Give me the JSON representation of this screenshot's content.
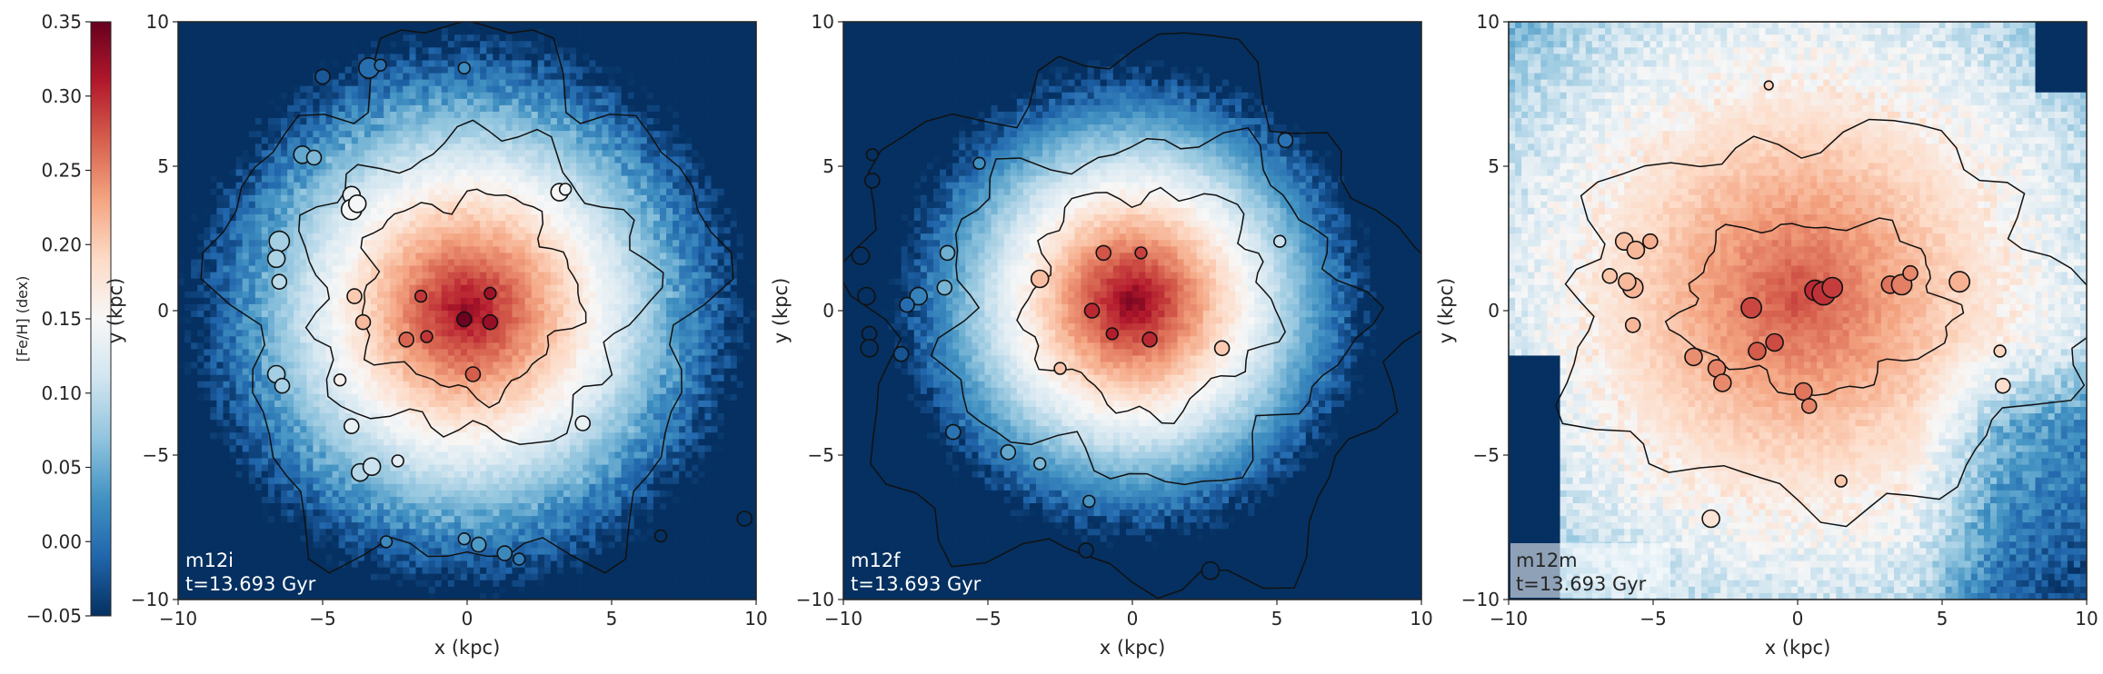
{
  "chart_data": {
    "type": "heatmap",
    "colorbar": {
      "label": "[Fe/H] (dex)",
      "range": [
        -0.05,
        0.35
      ],
      "ticks": [
        -0.05,
        0.0,
        0.05,
        0.1,
        0.15,
        0.2,
        0.25,
        0.3,
        0.35
      ],
      "tick_labels": [
        "−0.05",
        "0.00",
        "0.05",
        "0.10",
        "0.15",
        "0.20",
        "0.25",
        "0.30",
        "0.35"
      ],
      "colormap": "RdBu_r",
      "colors": [
        "#053061",
        "#2166ac",
        "#4393c3",
        "#92c5de",
        "#d1e5f0",
        "#f7f7f7",
        "#fddbc7",
        "#f4a582",
        "#d6604d",
        "#b2182b",
        "#67001f"
      ]
    },
    "panels": [
      {
        "name": "m12i",
        "time_label": "t=13.693 Gyr",
        "xlabel": "x (kpc)",
        "ylabel": "y (kpc)",
        "xlim": [
          -10,
          10
        ],
        "ylim": [
          -10,
          10
        ],
        "xticks": [
          -10,
          -5,
          0,
          5,
          10
        ],
        "yticks": [
          -10,
          -5,
          0,
          5,
          10
        ],
        "xtick_labels": [
          "−10",
          "−5",
          "0",
          "5",
          "10"
        ],
        "ytick_labels": [
          "−10",
          "−5",
          "0",
          "5",
          "10"
        ],
        "field": {
          "center": [
            0,
            0
          ],
          "central_feh": 0.33,
          "gradient_per_kpc": -0.04
        },
        "contour_levels_kpc": [
          {
            "center": [
              0,
              0.2
            ],
            "rx": 8.2,
            "ry": 9.2
          },
          {
            "center": [
              0.2,
              0.8
            ],
            "rx": 5.8,
            "ry": 5.2
          },
          {
            "center": [
              0,
              0.6
            ],
            "rx": 3.7,
            "ry": 3.4
          }
        ],
        "clusters": [
          {
            "x": -5.0,
            "y": 8.1,
            "r": 0.25
          },
          {
            "x": -3.4,
            "y": 8.4,
            "r": 0.35
          },
          {
            "x": -3.0,
            "y": 8.5,
            "r": 0.2
          },
          {
            "x": -0.1,
            "y": 8.4,
            "r": 0.2
          },
          {
            "x": -5.7,
            "y": 5.4,
            "r": 0.3
          },
          {
            "x": -5.3,
            "y": 5.3,
            "r": 0.25
          },
          {
            "x": -4.0,
            "y": 4.0,
            "r": 0.3
          },
          {
            "x": -4.0,
            "y": 3.5,
            "r": 0.35
          },
          {
            "x": -3.8,
            "y": 3.7,
            "r": 0.3
          },
          {
            "x": 3.2,
            "y": 4.1,
            "r": 0.3
          },
          {
            "x": 3.4,
            "y": 4.2,
            "r": 0.2
          },
          {
            "x": -6.5,
            "y": 2.4,
            "r": 0.35
          },
          {
            "x": -6.6,
            "y": 1.8,
            "r": 0.3
          },
          {
            "x": -6.5,
            "y": 1.0,
            "r": 0.25
          },
          {
            "x": -3.9,
            "y": 0.5,
            "r": 0.25
          },
          {
            "x": -3.6,
            "y": -0.4,
            "r": 0.25
          },
          {
            "x": -1.6,
            "y": 0.5,
            "r": 0.2
          },
          {
            "x": -0.1,
            "y": -0.3,
            "r": 0.25
          },
          {
            "x": 0.8,
            "y": 0.6,
            "r": 0.2
          },
          {
            "x": 0.8,
            "y": -0.4,
            "r": 0.25
          },
          {
            "x": -1.4,
            "y": -0.9,
            "r": 0.2
          },
          {
            "x": -2.1,
            "y": -1.0,
            "r": 0.25
          },
          {
            "x": 0.2,
            "y": -2.2,
            "r": 0.25
          },
          {
            "x": -6.6,
            "y": -2.2,
            "r": 0.3
          },
          {
            "x": -6.4,
            "y": -2.6,
            "r": 0.25
          },
          {
            "x": -4.4,
            "y": -2.4,
            "r": 0.2
          },
          {
            "x": -4.0,
            "y": -4.0,
            "r": 0.25
          },
          {
            "x": -3.7,
            "y": -5.6,
            "r": 0.3
          },
          {
            "x": -3.3,
            "y": -5.4,
            "r": 0.3
          },
          {
            "x": -2.4,
            "y": -5.2,
            "r": 0.2
          },
          {
            "x": 4.0,
            "y": -3.9,
            "r": 0.25
          },
          {
            "x": -2.8,
            "y": -8.0,
            "r": 0.2
          },
          {
            "x": -0.1,
            "y": -7.9,
            "r": 0.2
          },
          {
            "x": 0.4,
            "y": -8.1,
            "r": 0.25
          },
          {
            "x": 1.3,
            "y": -8.4,
            "r": 0.25
          },
          {
            "x": 1.8,
            "y": -8.6,
            "r": 0.2
          },
          {
            "x": 9.6,
            "y": -7.2,
            "r": 0.25
          },
          {
            "x": 6.7,
            "y": -7.8,
            "r": 0.2
          }
        ]
      },
      {
        "name": "m12f",
        "time_label": "t=13.693 Gyr",
        "xlabel": "x (kpc)",
        "ylabel": "y (kpc)",
        "xlim": [
          -10,
          10
        ],
        "ylim": [
          -10,
          10
        ],
        "xticks": [
          -10,
          -5,
          0,
          5,
          10
        ],
        "yticks": [
          -10,
          -5,
          0,
          5,
          10
        ],
        "xtick_labels": [
          "−10",
          "−5",
          "0",
          "5",
          "10"
        ],
        "ytick_labels": [
          "−10",
          "−5",
          "0",
          "5",
          "10"
        ],
        "field": {
          "center": [
            0,
            0.3
          ],
          "central_feh": 0.34,
          "gradient_per_kpc": -0.048
        },
        "contour_levels_kpc": [
          {
            "center": [
              0,
              -0.3
            ],
            "rx": 9.6,
            "ry": 9.2
          },
          {
            "center": [
              0.5,
              0.1
            ],
            "rx": 7.0,
            "ry": 5.8
          },
          {
            "center": [
              0.6,
              0.4
            ],
            "rx": 4.2,
            "ry": 3.8
          }
        ],
        "clusters": [
          {
            "x": -9.0,
            "y": 4.5,
            "r": 0.25
          },
          {
            "x": -5.3,
            "y": 5.1,
            "r": 0.2
          },
          {
            "x": -9.4,
            "y": 1.9,
            "r": 0.3
          },
          {
            "x": -9.2,
            "y": 0.5,
            "r": 0.3
          },
          {
            "x": -7.4,
            "y": 0.5,
            "r": 0.3
          },
          {
            "x": -7.8,
            "y": 0.2,
            "r": 0.25
          },
          {
            "x": -6.5,
            "y": 0.8,
            "r": 0.25
          },
          {
            "x": -6.4,
            "y": 2.0,
            "r": 0.25
          },
          {
            "x": -3.2,
            "y": 1.1,
            "r": 0.3
          },
          {
            "x": -1.0,
            "y": 2.0,
            "r": 0.25
          },
          {
            "x": 0.3,
            "y": 2.0,
            "r": 0.2
          },
          {
            "x": -1.4,
            "y": 0.0,
            "r": 0.25
          },
          {
            "x": -0.7,
            "y": -0.8,
            "r": 0.2
          },
          {
            "x": 0.6,
            "y": -1.0,
            "r": 0.25
          },
          {
            "x": -9.1,
            "y": -0.8,
            "r": 0.25
          },
          {
            "x": -9.1,
            "y": -1.3,
            "r": 0.3
          },
          {
            "x": -8.0,
            "y": -1.5,
            "r": 0.25
          },
          {
            "x": -2.5,
            "y": -2.0,
            "r": 0.2
          },
          {
            "x": 3.1,
            "y": -1.3,
            "r": 0.25
          },
          {
            "x": -6.2,
            "y": -4.2,
            "r": 0.25
          },
          {
            "x": -4.3,
            "y": -4.9,
            "r": 0.25
          },
          {
            "x": -3.2,
            "y": -5.3,
            "r": 0.2
          },
          {
            "x": -1.5,
            "y": -6.6,
            "r": 0.2
          },
          {
            "x": -1.6,
            "y": -8.3,
            "r": 0.25
          },
          {
            "x": 2.7,
            "y": -9.0,
            "r": 0.3
          },
          {
            "x": 5.1,
            "y": 2.4,
            "r": 0.2
          },
          {
            "x": 5.3,
            "y": 5.9,
            "r": 0.25
          },
          {
            "x": -9.0,
            "y": 5.4,
            "r": 0.2
          }
        ]
      },
      {
        "name": "m12m",
        "time_label": "t=13.693 Gyr",
        "xlabel": "x (kpc)",
        "ylabel": "y (kpc)",
        "xlim": [
          -10,
          10
        ],
        "ylim": [
          -10,
          10
        ],
        "xticks": [
          -10,
          -5,
          0,
          5,
          10
        ],
        "yticks": [
          -10,
          -5,
          0,
          5,
          10
        ],
        "xtick_labels": [
          "−10",
          "−5",
          "0",
          "5",
          "10"
        ],
        "ytick_labels": [
          "−10",
          "−5",
          "0",
          "5",
          "10"
        ],
        "field": {
          "center": [
            0,
            0.5
          ],
          "central_feh": 0.28,
          "gradient_per_kpc": -0.016
        },
        "contour_levels_kpc": [
          {
            "center": [
              0.8,
              -0.2
            ],
            "rx": 8.9,
            "ry": 6.4
          },
          {
            "center": [
              0.6,
              0.2
            ],
            "rx": 4.6,
            "ry": 2.9
          }
        ],
        "clusters": [
          {
            "x": -6.0,
            "y": 2.4,
            "r": 0.3
          },
          {
            "x": -5.6,
            "y": 2.1,
            "r": 0.3
          },
          {
            "x": -5.1,
            "y": 2.4,
            "r": 0.25
          },
          {
            "x": -5.7,
            "y": 0.8,
            "r": 0.35
          },
          {
            "x": -5.9,
            "y": 1.0,
            "r": 0.3
          },
          {
            "x": -6.5,
            "y": 1.2,
            "r": 0.25
          },
          {
            "x": -5.7,
            "y": -0.5,
            "r": 0.25
          },
          {
            "x": -1.6,
            "y": 0.1,
            "r": 0.35
          },
          {
            "x": -1.4,
            "y": -1.4,
            "r": 0.3
          },
          {
            "x": -0.8,
            "y": -1.1,
            "r": 0.3
          },
          {
            "x": 0.6,
            "y": 0.7,
            "r": 0.35
          },
          {
            "x": 0.9,
            "y": 0.6,
            "r": 0.4
          },
          {
            "x": 1.2,
            "y": 0.8,
            "r": 0.35
          },
          {
            "x": 3.2,
            "y": 0.9,
            "r": 0.3
          },
          {
            "x": 3.6,
            "y": 0.9,
            "r": 0.35
          },
          {
            "x": 3.9,
            "y": 1.3,
            "r": 0.25
          },
          {
            "x": 5.6,
            "y": 1.0,
            "r": 0.35
          },
          {
            "x": -3.6,
            "y": -1.6,
            "r": 0.3
          },
          {
            "x": -2.8,
            "y": -2.0,
            "r": 0.3
          },
          {
            "x": -2.6,
            "y": -2.5,
            "r": 0.3
          },
          {
            "x": 0.2,
            "y": -2.8,
            "r": 0.3
          },
          {
            "x": 0.4,
            "y": -3.3,
            "r": 0.25
          },
          {
            "x": 7.1,
            "y": -2.6,
            "r": 0.25
          },
          {
            "x": 7.0,
            "y": -1.4,
            "r": 0.2
          },
          {
            "x": -3.0,
            "y": -7.2,
            "r": 0.3
          },
          {
            "x": 1.5,
            "y": -5.9,
            "r": 0.2
          },
          {
            "x": -1.0,
            "y": 7.8,
            "r": 0.15
          }
        ]
      }
    ]
  }
}
